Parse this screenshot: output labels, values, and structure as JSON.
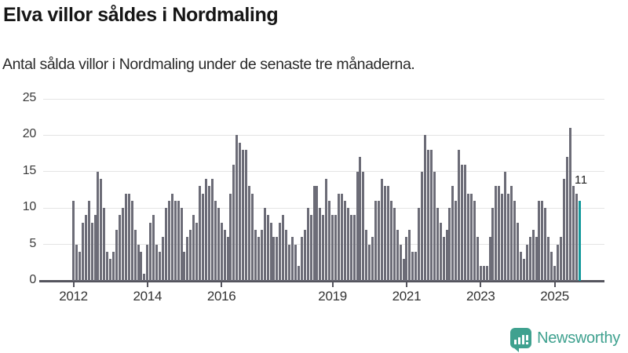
{
  "title": "Elva villor såldes i Nordmaling",
  "subtitle": "Antal sålda villor i Nordmaling under de senaste tre månaderna.",
  "annotation": {
    "label": "11"
  },
  "logo": {
    "text": "Newsworthy",
    "icon": "newsworthy-bubble-barchart-icon"
  },
  "colors": {
    "bar": "#6c6c77",
    "highlight": "#14999c",
    "grid": "#e4e4e4",
    "axis": "#55555e",
    "title_text": "#161616",
    "body_text": "#2a2a2a",
    "logo_teal": "#3fa18f"
  },
  "chart_data": {
    "type": "bar",
    "title": "Elva villor såldes i Nordmaling",
    "subtitle": "Antal sålda villor i Nordmaling under de senaste tre månaderna.",
    "x_start": "2012-01",
    "x_end": "2025-09",
    "frequency": "monthly (rolling 3-month sales count)",
    "xlabel": "",
    "ylabel": "",
    "ylim": [
      0,
      25
    ],
    "yticks": [
      0,
      5,
      10,
      15,
      20,
      25
    ],
    "grid": true,
    "legend": false,
    "xticks": [
      {
        "label": "2012",
        "month_index": 0
      },
      {
        "label": "2014",
        "month_index": 24
      },
      {
        "label": "2016",
        "month_index": 48
      },
      {
        "label": "2019",
        "month_index": 84
      },
      {
        "label": "2021",
        "month_index": 108
      },
      {
        "label": "2023",
        "month_index": 132
      },
      {
        "label": "2025",
        "month_index": 156
      }
    ],
    "values": [
      11,
      5,
      4,
      8,
      9,
      11,
      8,
      9,
      15,
      14,
      10,
      4,
      3,
      4,
      7,
      9,
      10,
      12,
      12,
      11,
      7,
      5,
      4,
      1,
      5,
      8,
      9,
      5,
      4,
      6,
      10,
      11,
      12,
      11,
      11,
      10,
      4,
      6,
      7,
      9,
      8,
      13,
      12,
      14,
      13,
      14,
      11,
      10,
      8,
      7,
      6,
      12,
      16,
      20,
      19,
      18,
      18,
      13,
      12,
      7,
      6,
      7,
      10,
      9,
      8,
      6,
      6,
      8,
      9,
      7,
      5,
      6,
      5,
      2,
      6,
      7,
      10,
      9,
      13,
      13,
      10,
      9,
      14,
      11,
      9,
      9,
      12,
      12,
      11,
      10,
      9,
      9,
      15,
      17,
      15,
      7,
      5,
      6,
      11,
      11,
      14,
      13,
      13,
      11,
      10,
      7,
      5,
      3,
      6,
      7,
      4,
      4,
      10,
      15,
      20,
      18,
      18,
      15,
      10,
      8,
      6,
      7,
      10,
      13,
      11,
      18,
      16,
      16,
      12,
      12,
      11,
      6,
      2,
      2,
      2,
      6,
      10,
      13,
      13,
      12,
      15,
      12,
      13,
      11,
      8,
      4,
      3,
      5,
      6,
      7,
      6,
      11,
      11,
      10,
      6,
      4,
      2,
      5,
      6,
      14,
      17,
      21,
      13,
      12,
      11
    ],
    "highlight_index": 164,
    "highlight_value": 11,
    "highlight_label": "11"
  }
}
